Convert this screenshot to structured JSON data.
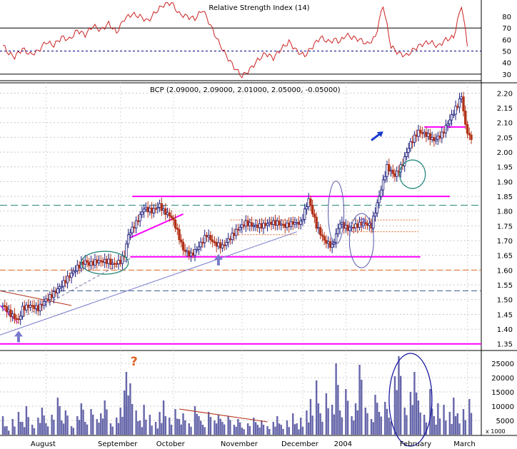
{
  "chart_data": [
    {
      "type": "line",
      "panel": "rsi",
      "title": "Relative Strength Index (14)",
      "y_ticks": [
        30,
        40,
        50,
        60,
        70,
        80
      ],
      "ylim": [
        25,
        93
      ],
      "levels": [
        30,
        50,
        70
      ],
      "series": [
        {
          "x_index": [
            0,
            3,
            6,
            10,
            14,
            18,
            22,
            26,
            30,
            34,
            38,
            42,
            46,
            50,
            54,
            58,
            62,
            66,
            70,
            74,
            78,
            82,
            86,
            90,
            94,
            98,
            102,
            106,
            110,
            114,
            118,
            122,
            126,
            130,
            134,
            138,
            142,
            146,
            150,
            154,
            158,
            162,
            166,
            170,
            172,
            175,
            178,
            182,
            186,
            190,
            194,
            198,
            202,
            206,
            210,
            214,
            218,
            222,
            226,
            230,
            234,
            237
          ],
          "values": [
            55,
            48,
            45,
            52,
            47,
            50,
            58,
            55,
            62,
            60,
            68,
            64,
            72,
            68,
            74,
            66,
            78,
            82,
            80,
            76,
            84,
            90,
            92,
            82,
            80,
            78,
            86,
            72,
            58,
            46,
            36,
            28,
            34,
            42,
            48,
            44,
            52,
            58,
            50,
            46,
            54,
            62,
            58,
            60,
            58,
            64,
            62,
            60,
            56,
            62,
            90,
            54,
            48,
            46,
            52,
            56,
            58,
            54,
            60,
            62,
            90,
            56
          ]
        }
      ]
    },
    {
      "type": "candlestick",
      "panel": "price",
      "title": "BCP (2.09000, 2.09000, 2.01000, 2.05000, -0.05000)",
      "ylim": [
        1.33,
        2.23
      ],
      "y_ticks": [
        "1.35",
        "1.40",
        "1.45",
        "1.50",
        "1.55",
        "1.60",
        "1.65",
        "1.70",
        "1.75",
        "1.80",
        "1.85",
        "1.90",
        "1.95",
        "2.00",
        "2.05",
        "2.10",
        "2.15",
        "2.20"
      ],
      "close_path": {
        "x_index": [
          0,
          4,
          8,
          10,
          14,
          18,
          22,
          26,
          30,
          34,
          38,
          42,
          44,
          48,
          50,
          54,
          56,
          60,
          62,
          64,
          68,
          72,
          76,
          80,
          82,
          86,
          88,
          90,
          92,
          96,
          100,
          104,
          108,
          112,
          116,
          120,
          124,
          128,
          132,
          136,
          140,
          144,
          148,
          152,
          156,
          160,
          164,
          168,
          172,
          176,
          180,
          184,
          188,
          192,
          196,
          200,
          204,
          206,
          208,
          210,
          212,
          216,
          220,
          224,
          228,
          232,
          234,
          236,
          238
        ],
        "values": [
          1.48,
          1.45,
          1.43,
          1.47,
          1.48,
          1.47,
          1.5,
          1.52,
          1.55,
          1.58,
          1.61,
          1.63,
          1.62,
          1.63,
          1.63,
          1.63,
          1.62,
          1.63,
          1.65,
          1.72,
          1.76,
          1.81,
          1.8,
          1.82,
          1.8,
          1.78,
          1.75,
          1.71,
          1.67,
          1.65,
          1.68,
          1.72,
          1.69,
          1.68,
          1.71,
          1.74,
          1.76,
          1.75,
          1.75,
          1.76,
          1.76,
          1.75,
          1.76,
          1.76,
          1.84,
          1.75,
          1.7,
          1.68,
          1.76,
          1.74,
          1.75,
          1.76,
          1.75,
          1.85,
          1.95,
          1.92,
          1.96,
          2.0,
          2.03,
          2.05,
          2.07,
          2.06,
          2.04,
          2.06,
          2.11,
          2.16,
          2.19,
          2.09,
          2.05
        ]
      },
      "support_resistance_levels": [
        1.35,
        1.53,
        1.6,
        1.645,
        1.71,
        1.82,
        1.85,
        2.085
      ],
      "annotation_marks": [
        "?",
        "?"
      ]
    },
    {
      "type": "bar",
      "panel": "volume",
      "unit_label": "x 1000",
      "y_ticks": [
        "5000",
        "10000",
        "15000",
        "20000",
        "25000"
      ],
      "ylim": [
        0,
        29000
      ],
      "series": [
        {
          "x_index": [
            0,
            2,
            5,
            8,
            10,
            12,
            15,
            18,
            20,
            22,
            25,
            28,
            30,
            32,
            35,
            38,
            40,
            42,
            45,
            48,
            50,
            52,
            55,
            58,
            60,
            62,
            63,
            65,
            68,
            70,
            72,
            75,
            78,
            80,
            82,
            85,
            88,
            90,
            92,
            95,
            98,
            100,
            102,
            105,
            108,
            110,
            112,
            115,
            118,
            120,
            122,
            125,
            128,
            130,
            132,
            135,
            138,
            140,
            142,
            145,
            148,
            150,
            152,
            155,
            157,
            160,
            162,
            165,
            168,
            170,
            172,
            175,
            178,
            180,
            182,
            185,
            188,
            190,
            192,
            195,
            197,
            200,
            202,
            205,
            208,
            210,
            212,
            215,
            218,
            220,
            222,
            225,
            228,
            230,
            232,
            235,
            238
          ],
          "values": [
            6500,
            3000,
            5500,
            8000,
            4500,
            10000,
            3500,
            6000,
            9500,
            4000,
            7000,
            13000,
            5000,
            8500,
            3000,
            6500,
            11000,
            4500,
            9000,
            5500,
            7500,
            12000,
            4000,
            6000,
            9500,
            15500,
            22000,
            18000,
            8500,
            5000,
            10500,
            7000,
            4500,
            8000,
            12000,
            6000,
            9000,
            5500,
            7500,
            4000,
            10000,
            6500,
            3500,
            8000,
            5000,
            7000,
            4500,
            6500,
            3500,
            5500,
            2500,
            4000,
            6000,
            3500,
            5000,
            3000,
            4500,
            6500,
            3500,
            5000,
            7500,
            4000,
            6000,
            8500,
            12500,
            19000,
            7500,
            14500,
            10500,
            25000,
            8500,
            16000,
            6500,
            11000,
            24500,
            9500,
            5500,
            14000,
            8000,
            11500,
            6000,
            20500,
            27500,
            9500,
            15000,
            22000,
            12000,
            7000,
            16000,
            6500,
            11000,
            10500,
            8000,
            13000,
            7500,
            9000,
            12500
          ]
        }
      ]
    }
  ],
  "x_axis": {
    "labels": [
      "August",
      "September",
      "October",
      "November",
      "December",
      "2004",
      "February",
      "March"
    ]
  },
  "colors": {
    "price_up": "#1a1a7a",
    "price_down": "#b33218",
    "rsi_line": "#cc2222",
    "trendline_magenta": "#ff00ff",
    "support_blue": "#7777cc",
    "volume_bar": "#6666aa",
    "ellipse_teal": "#2a8a80",
    "ellipse_blue": "#1a1aa0"
  }
}
